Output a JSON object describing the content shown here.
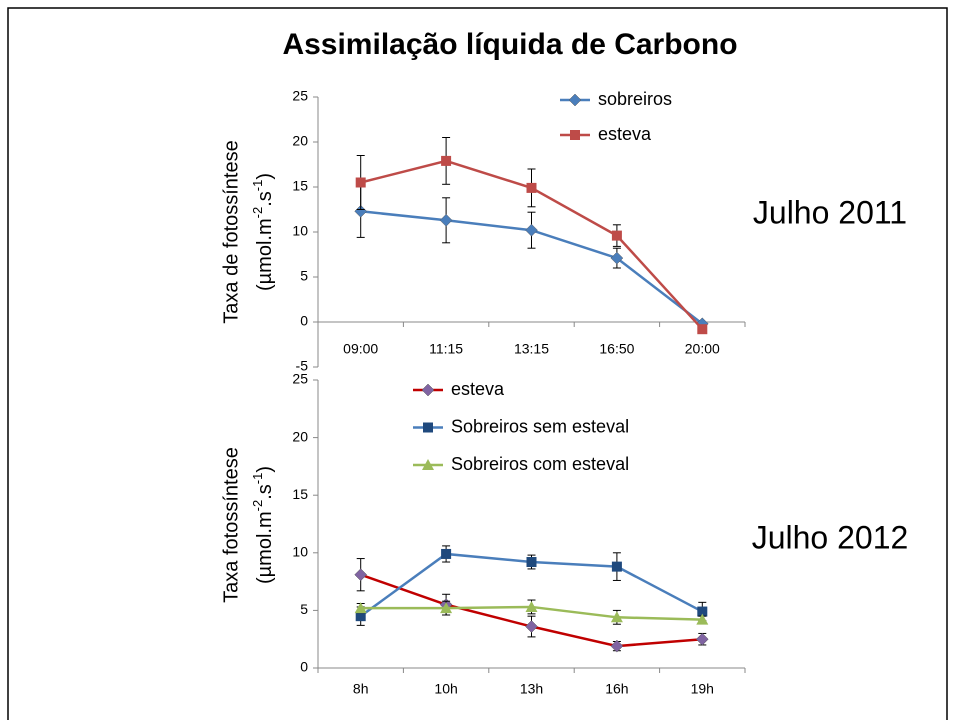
{
  "title": "Assimilação líquida de Carbono",
  "chart_data": [
    {
      "type": "line",
      "annotation": "Julho 2011",
      "ylabel": "Taxa de fotossíntese",
      "ylabel_unit_parts": [
        "(µmol.m",
        "-2",
        ".s",
        "-1",
        ")"
      ],
      "categories": [
        "09:00",
        "11:15",
        "13:15",
        "16:50",
        "20:00"
      ],
      "ylim": [
        -5,
        25
      ],
      "yticks": [
        -5,
        0,
        5,
        10,
        15,
        20,
        25
      ],
      "series": [
        {
          "name": "sobreiros",
          "color": "#4a7ebb",
          "marker": "diamond",
          "values": [
            12.3,
            11.3,
            10.2,
            7.1,
            -0.2
          ],
          "errors": [
            2.9,
            2.5,
            2.0,
            1.1,
            0.1
          ]
        },
        {
          "name": "esteva",
          "color": "#be4b48",
          "marker": "square",
          "values": [
            15.5,
            17.9,
            14.9,
            9.6,
            -0.8
          ],
          "errors": [
            3.0,
            2.6,
            2.1,
            1.2,
            0.1
          ]
        }
      ]
    },
    {
      "type": "line",
      "annotation": "Julho 2012",
      "ylabel": "Taxa fotossíntese",
      "ylabel_unit_parts": [
        "(µmol.m",
        "-2",
        ".s",
        "-1",
        ")"
      ],
      "categories": [
        "8h",
        "10h",
        "13h",
        "16h",
        "19h"
      ],
      "ylim": [
        0,
        25
      ],
      "yticks": [
        0,
        5,
        10,
        15,
        20,
        25
      ],
      "series": [
        {
          "name": "esteva",
          "color": "#c00000",
          "marker_color": "#8064a2",
          "marker": "diamond",
          "values": [
            8.1,
            5.5,
            3.6,
            1.9,
            2.5
          ],
          "errors": [
            1.4,
            0.9,
            0.9,
            0.4,
            0.5
          ]
        },
        {
          "name": "Sobreiros sem esteval",
          "color": "#4a7ebb",
          "marker_color": "#1f497d",
          "marker": "square",
          "values": [
            4.5,
            9.9,
            9.2,
            8.8,
            4.9
          ],
          "errors": [
            0.8,
            0.7,
            0.6,
            1.2,
            0.8
          ]
        },
        {
          "name": "Sobreiros com esteval",
          "color": "#9bbb59",
          "marker": "triangle",
          "values": [
            5.2,
            5.2,
            5.3,
            4.4,
            4.2
          ],
          "errors": [
            0.4,
            0.6,
            0.6,
            0.6,
            0.3
          ]
        }
      ]
    }
  ]
}
